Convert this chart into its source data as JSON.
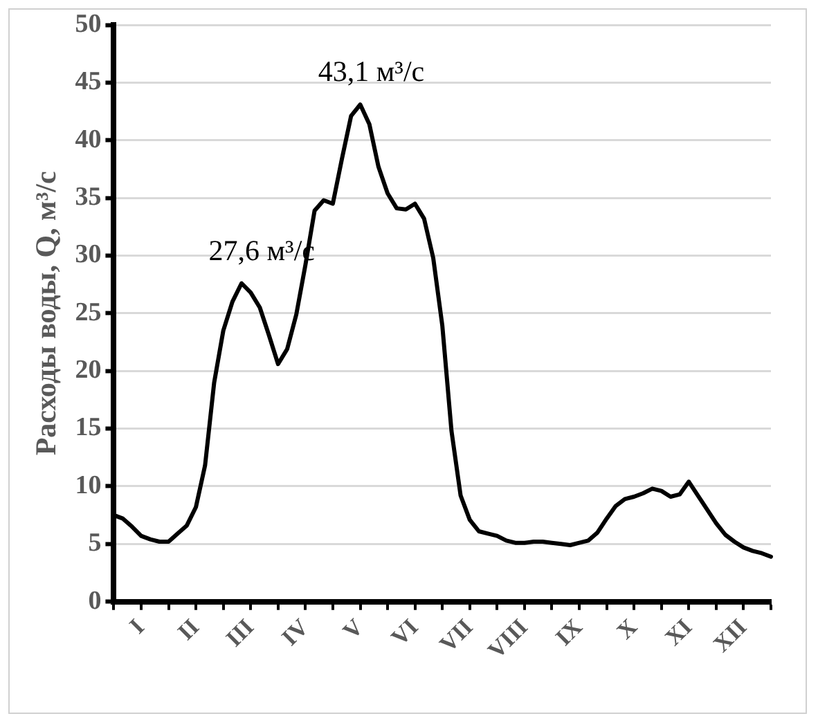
{
  "chart_data": {
    "type": "line",
    "ylabel": "Расходы воды, Q, м³/с",
    "categories": [
      null,
      null,
      null,
      "I",
      null,
      null,
      null,
      null,
      null,
      "II",
      null,
      null,
      null,
      null,
      null,
      "III",
      null,
      null,
      null,
      null,
      null,
      "IV",
      null,
      null,
      null,
      null,
      null,
      "V",
      null,
      null,
      null,
      null,
      null,
      "VI",
      null,
      null,
      null,
      null,
      null,
      "VII",
      null,
      null,
      null,
      null,
      null,
      "VIII",
      null,
      null,
      null,
      null,
      null,
      "IX",
      null,
      null,
      null,
      null,
      null,
      "X",
      null,
      null,
      null,
      null,
      null,
      "XI",
      null,
      null,
      null,
      null,
      null,
      "XII",
      null,
      null,
      null
    ],
    "series": [
      {
        "color": "#000000",
        "values": [
          7.5,
          7.2,
          6.5,
          5.7,
          5.4,
          5.2,
          5.2,
          5.9,
          6.6,
          8.2,
          11.8,
          19.0,
          23.5,
          26.0,
          27.6,
          26.8,
          25.5,
          23.1,
          20.6,
          21.9,
          24.9,
          29.2,
          33.9,
          34.8,
          34.5,
          38.4,
          42.1,
          43.1,
          41.4,
          37.7,
          35.4,
          34.1,
          34.0,
          34.5,
          33.2,
          29.8,
          23.9,
          14.8,
          9.2,
          7.1,
          6.1,
          5.9,
          5.7,
          5.3,
          5.1,
          5.1,
          5.2,
          5.2,
          5.1,
          5.0,
          4.9,
          5.1,
          5.3,
          6.0,
          7.2,
          8.3,
          8.9,
          9.1,
          9.4,
          9.8,
          9.6,
          9.1,
          9.3,
          10.4,
          9.2,
          8.0,
          6.8,
          5.8,
          5.2,
          4.7,
          4.4,
          4.2,
          3.9
        ]
      }
    ],
    "ylim": [
      0,
      50
    ],
    "yticks": [
      0,
      5,
      10,
      15,
      20,
      25,
      30,
      35,
      40,
      45,
      50
    ],
    "grid": "y",
    "marker": "none",
    "line_style": "solid",
    "annotations": [
      {
        "text": "27,6 м³/с",
        "x": "III",
        "y": 27.6
      },
      {
        "text": "43,1 м³/с",
        "x": "V",
        "y": 43.1
      }
    ]
  }
}
